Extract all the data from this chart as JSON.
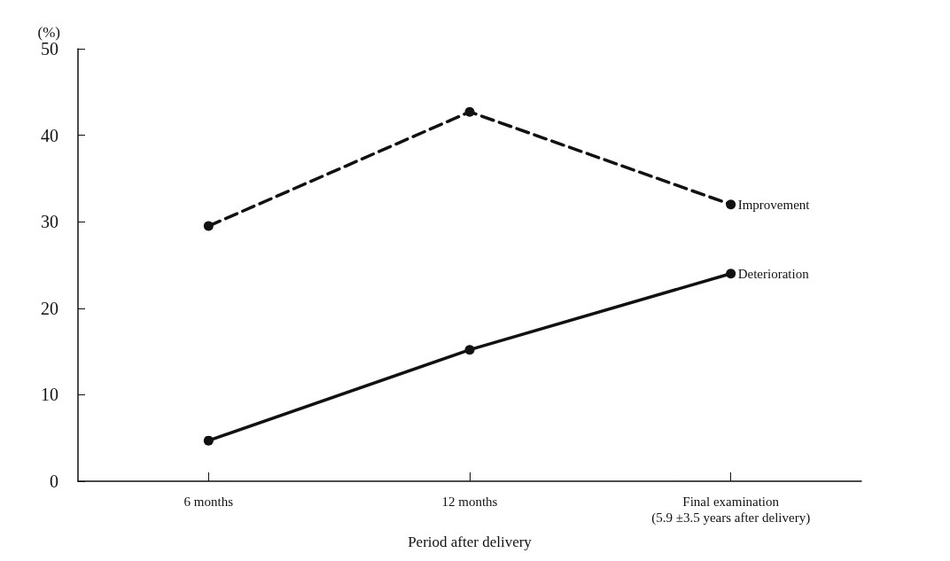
{
  "chart_data": {
    "type": "line",
    "xlabel": "Period after delivery",
    "ylabel": "(%)",
    "categories": [
      "6 months",
      "12 months",
      "Final examination\n(5.9 ±3.5 years after delivery)"
    ],
    "series": [
      {
        "name": "Improvement",
        "color": "#111111",
        "values": [
          29.5,
          42.7,
          32
        ],
        "line_style": "dashed"
      },
      {
        "name": "Deterioration",
        "color": "#111111",
        "values": [
          4.7,
          15.2,
          24
        ],
        "line_style": "solid"
      }
    ],
    "ylim": [
      0,
      50
    ],
    "yticks": [
      0,
      10,
      20,
      30,
      40,
      50
    ],
    "grid": false,
    "legend": false,
    "marker": "circle"
  }
}
